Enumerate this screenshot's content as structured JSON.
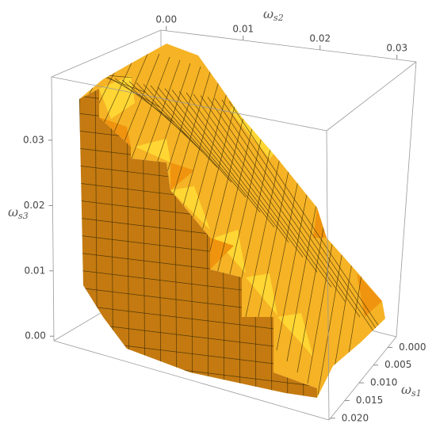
{
  "chart_data": {
    "type": "surface3d",
    "x_label": {
      "base": "ω",
      "sub": "s1"
    },
    "y_label": {
      "base": "ω",
      "sub": "s2"
    },
    "z_label": {
      "base": "ω",
      "sub": "s3"
    },
    "xlim": [
      -0.003,
      0.0205
    ],
    "xticks": [
      {
        "value": 0,
        "label": "0.000"
      },
      {
        "value": 0.005,
        "label": "0.005"
      },
      {
        "value": 0.01,
        "label": "0.010"
      },
      {
        "value": 0.015,
        "label": "0.015"
      },
      {
        "value": 0.02,
        "label": "0.020"
      }
    ],
    "ylim": [
      -0.0007,
      0.0325
    ],
    "yticks": [
      {
        "value": 0,
        "label": "0.00"
      },
      {
        "value": 0.01,
        "label": "0.01"
      },
      {
        "value": 0.02,
        "label": "0.02"
      },
      {
        "value": 0.03,
        "label": "0.03"
      }
    ],
    "zlim": [
      -0.0007,
      0.0397
    ],
    "zticks": [
      {
        "value": 0,
        "label": "0.00"
      },
      {
        "value": 0.01,
        "label": "0.01"
      },
      {
        "value": 0.02,
        "label": "0.02"
      },
      {
        "value": 0.03,
        "label": "0.03"
      }
    ]
  }
}
